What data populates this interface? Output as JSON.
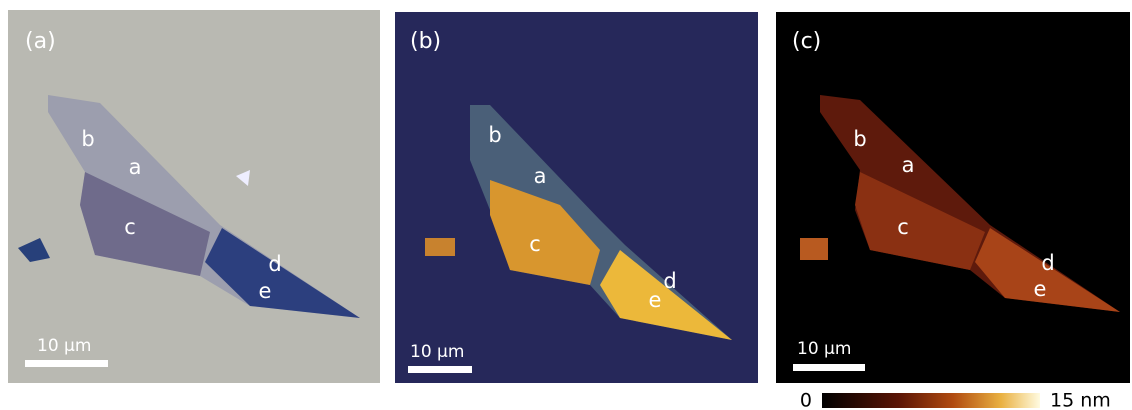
{
  "panels": [
    {
      "label": "(a)",
      "regions": [
        "b",
        "a",
        "c",
        "d",
        "e"
      ],
      "scale_bar": "10 µm"
    },
    {
      "label": "(b)",
      "regions": [
        "b",
        "a",
        "c",
        "d",
        "e"
      ],
      "scale_bar": "10 µm"
    },
    {
      "label": "(c)",
      "regions": [
        "b",
        "a",
        "c",
        "d",
        "e"
      ],
      "scale_bar": "10 µm"
    }
  ],
  "colorbar": {
    "min": "0",
    "max": "15 nm"
  }
}
